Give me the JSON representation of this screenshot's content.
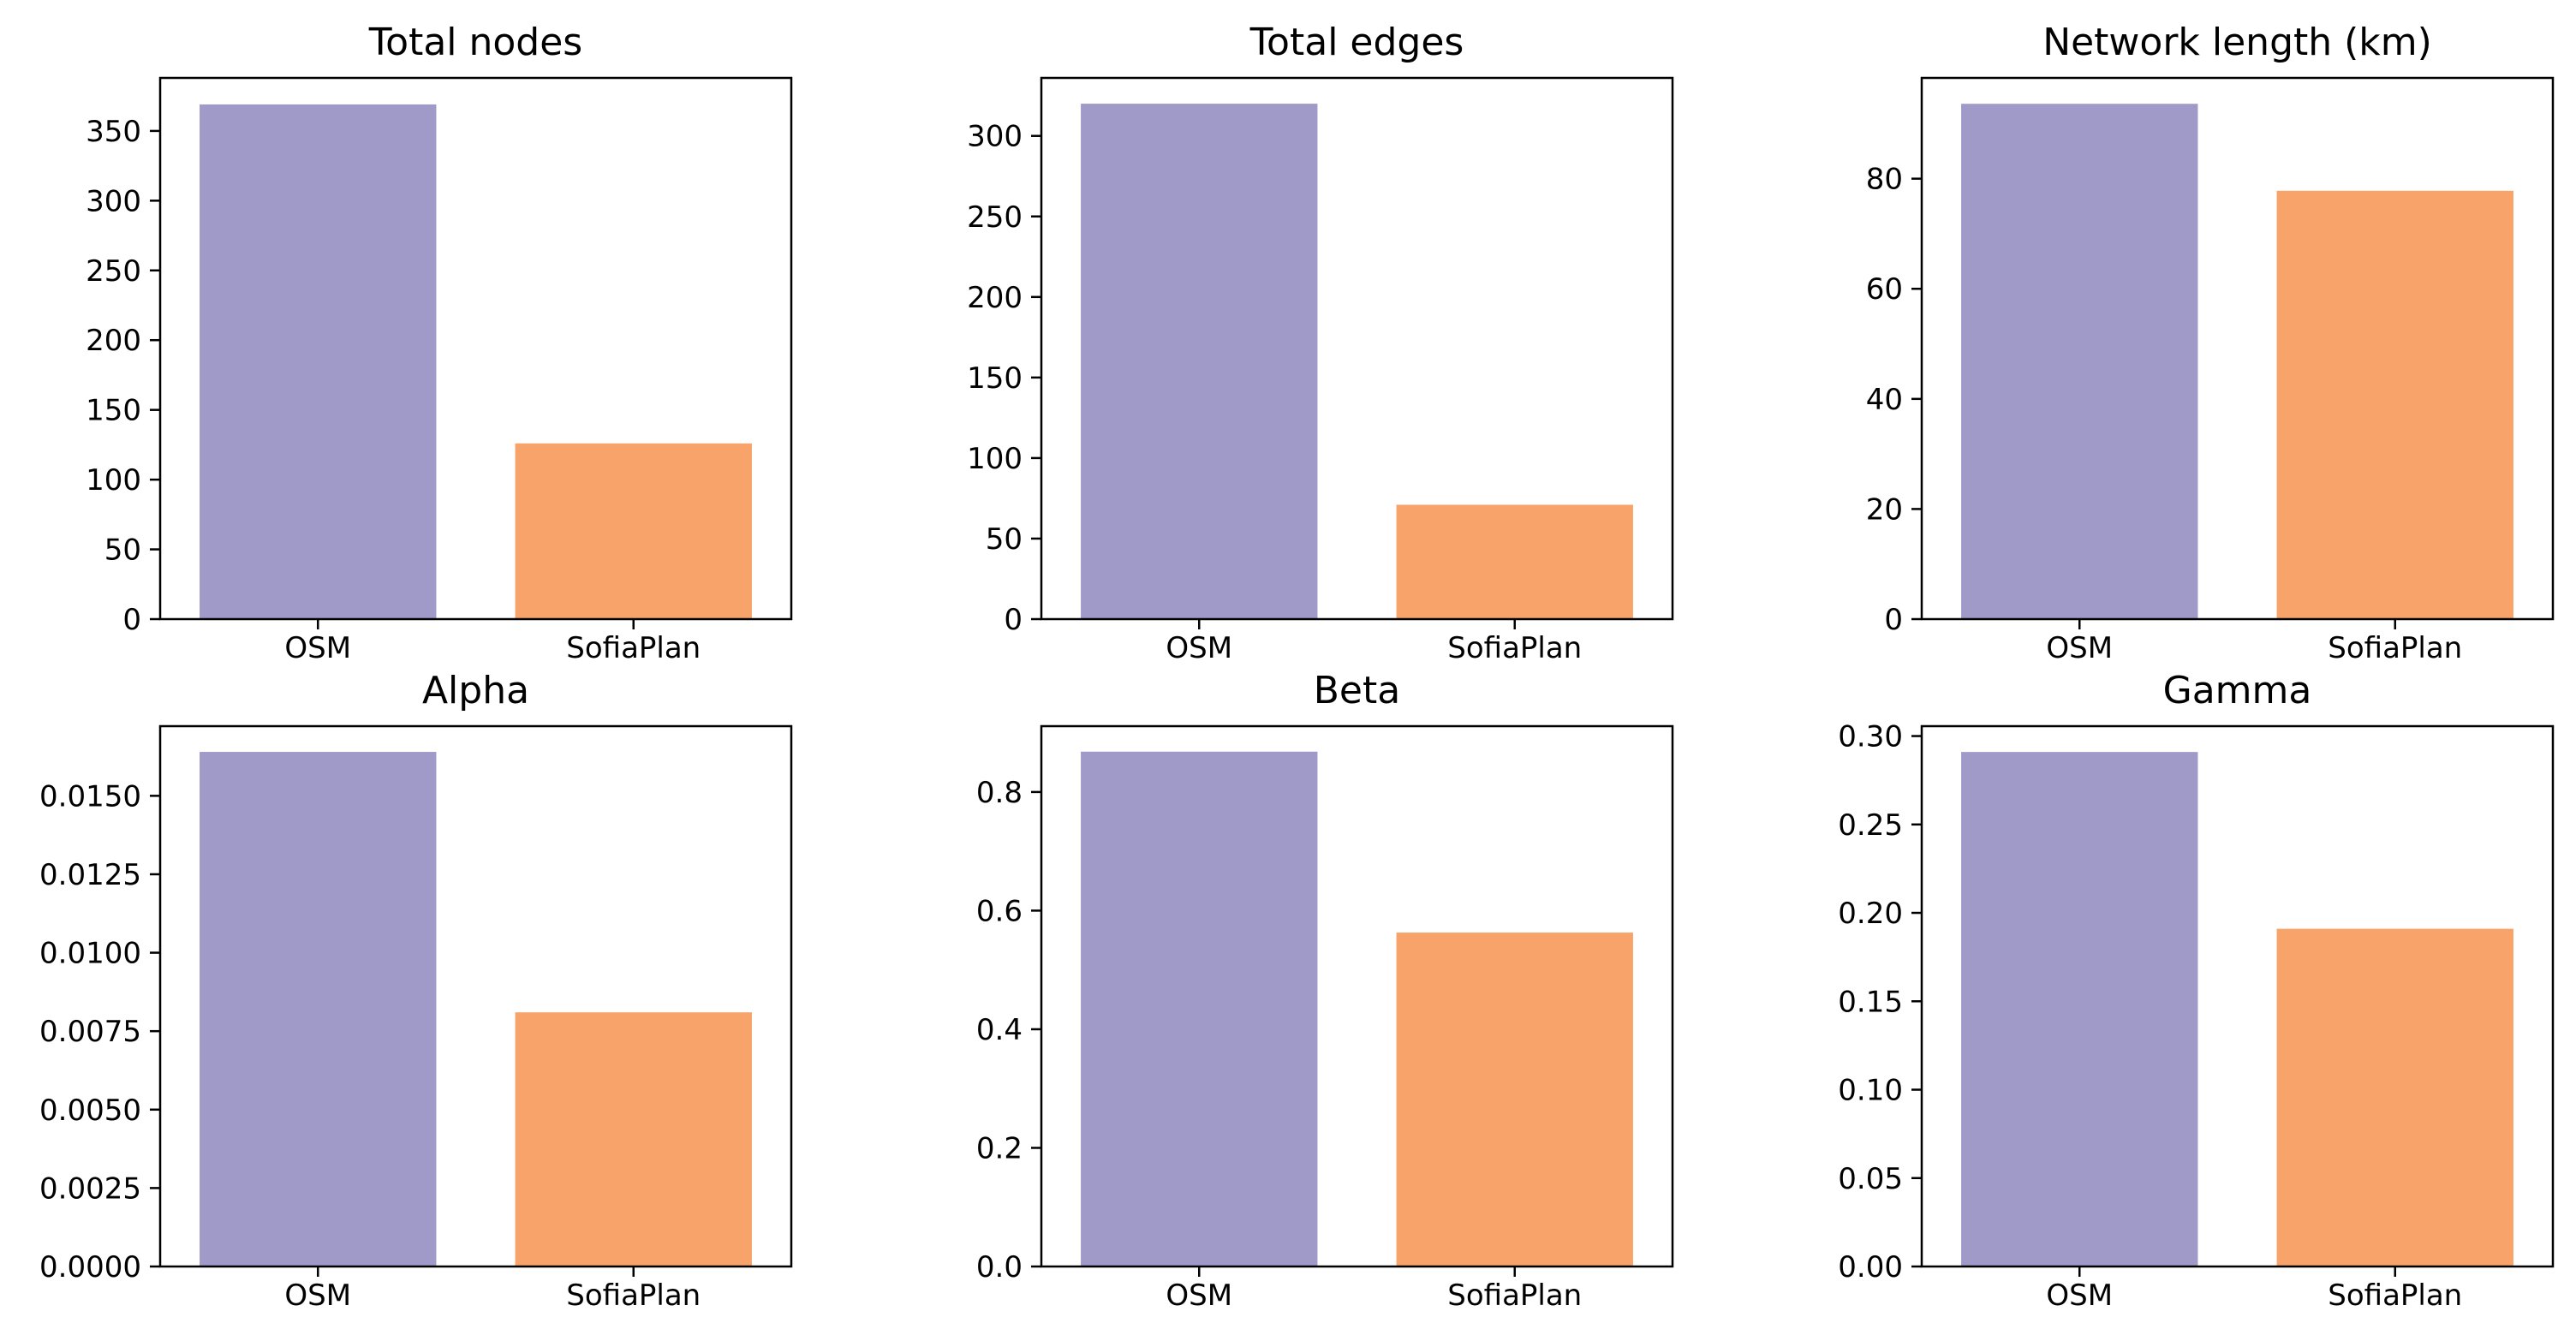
{
  "colors": {
    "OSM": "#a09ac9",
    "SofiaPlan": "#f8a36a"
  },
  "chart_data": [
    {
      "type": "bar",
      "title": "Total nodes",
      "categories": [
        "OSM",
        "SofiaPlan"
      ],
      "values": [
        369,
        126
      ],
      "ylim": [
        0,
        388
      ],
      "yticks": [
        0,
        50,
        100,
        150,
        200,
        250,
        300,
        350
      ],
      "tick_labels": [
        "0",
        "50",
        "100",
        "150",
        "200",
        "250",
        "300",
        "350"
      ],
      "grid": false,
      "xlabel": "",
      "ylabel": ""
    },
    {
      "type": "bar",
      "title": "Total edges",
      "categories": [
        "OSM",
        "SofiaPlan"
      ],
      "values": [
        320,
        71
      ],
      "ylim": [
        0,
        336
      ],
      "yticks": [
        0,
        50,
        100,
        150,
        200,
        250,
        300
      ],
      "tick_labels": [
        "0",
        "50",
        "100",
        "150",
        "200",
        "250",
        "300"
      ],
      "grid": false,
      "xlabel": "",
      "ylabel": ""
    },
    {
      "type": "bar",
      "title": "Network length (km)",
      "categories": [
        "OSM",
        "SofiaPlan"
      ],
      "values": [
        93.6,
        77.8
      ],
      "ylim": [
        0,
        98.3
      ],
      "yticks": [
        0,
        20,
        40,
        60,
        80
      ],
      "tick_labels": [
        "0",
        "20",
        "40",
        "60",
        "80"
      ],
      "grid": false,
      "xlabel": "",
      "ylabel": ""
    },
    {
      "type": "bar",
      "title": "Alpha",
      "categories": [
        "OSM",
        "SofiaPlan"
      ],
      "values": [
        0.0164,
        0.0081
      ],
      "ylim": [
        0,
        0.01722
      ],
      "yticks": [
        0,
        0.0025,
        0.005,
        0.0075,
        0.01,
        0.0125,
        0.015
      ],
      "tick_labels": [
        "0.0000",
        "0.0025",
        "0.0050",
        "0.0075",
        "0.0100",
        "0.0125",
        "0.0150"
      ],
      "grid": false,
      "xlabel": "",
      "ylabel": ""
    },
    {
      "type": "bar",
      "title": "Beta",
      "categories": [
        "OSM",
        "SofiaPlan"
      ],
      "values": [
        0.868,
        0.563
      ],
      "ylim": [
        0,
        0.911
      ],
      "yticks": [
        0,
        0.2,
        0.4,
        0.6,
        0.8
      ],
      "tick_labels": [
        "0.0",
        "0.2",
        "0.4",
        "0.6",
        "0.8"
      ],
      "grid": false,
      "xlabel": "",
      "ylabel": ""
    },
    {
      "type": "bar",
      "title": "Gamma",
      "categories": [
        "OSM",
        "SofiaPlan"
      ],
      "values": [
        0.291,
        0.191
      ],
      "ylim": [
        0,
        0.3056
      ],
      "yticks": [
        0,
        0.05,
        0.1,
        0.15,
        0.2,
        0.25,
        0.3
      ],
      "tick_labels": [
        "0.00",
        "0.05",
        "0.10",
        "0.15",
        "0.20",
        "0.25",
        "0.30"
      ],
      "grid": false,
      "xlabel": "",
      "ylabel": ""
    }
  ]
}
